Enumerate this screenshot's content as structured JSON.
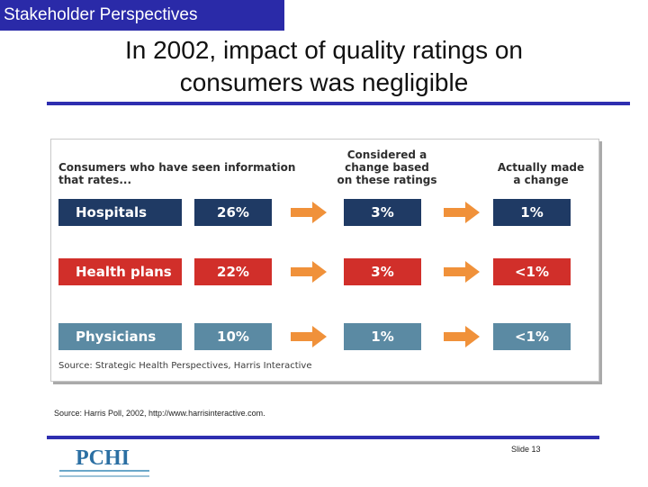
{
  "section_tag": "Stakeholder Perspectives",
  "title_line1": "In 2002, impact of quality ratings on",
  "title_line2": "consumers was negligible",
  "figure": {
    "header_seen": "Consumers who have seen information\nthat rates...",
    "header_considered": "Considered a\nchange based\non these ratings",
    "header_made": "Actually made\na change",
    "rows": [
      {
        "label": "Hospitals",
        "seen": "26%",
        "considered": "3%",
        "made": "1%",
        "color": "#1f3a64"
      },
      {
        "label": "Health plans",
        "seen": "22%",
        "considered": "3%",
        "made": "<1%",
        "color": "#d12f2a"
      },
      {
        "label": "Physicians",
        "seen": "10%",
        "considered": "1%",
        "made": "<1%",
        "color": "#5b8aa3"
      }
    ],
    "arrow_color": "#f0913a",
    "source": "Source: Strategic Health Perspectives, Harris Interactive"
  },
  "source_note": "Source: Harris Poll, 2002,  http://www.harrisinteractive.com.",
  "logo_text": "PCHI",
  "slide_label": "Slide 13"
}
